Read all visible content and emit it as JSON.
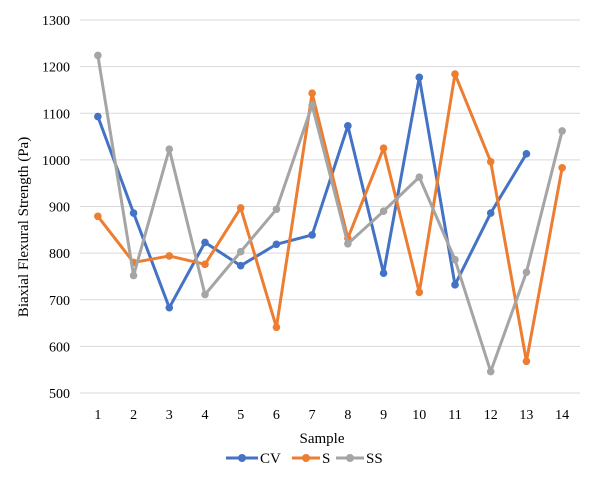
{
  "chart_data": {
    "type": "line",
    "title": "",
    "xlabel": "Sample",
    "ylabel": "Biaxial Flexural Strength (Pa)",
    "x": [
      1,
      2,
      3,
      4,
      5,
      6,
      7,
      8,
      9,
      10,
      11,
      12,
      13,
      14
    ],
    "ylim": [
      500,
      1300
    ],
    "yticks": [
      500,
      600,
      700,
      800,
      900,
      1000,
      1100,
      1200,
      1300
    ],
    "grid": true,
    "legend_position": "bottom",
    "series": [
      {
        "name": "CV",
        "color": "#4472c4",
        "values": [
          1093,
          886,
          683,
          823,
          773,
          819,
          839,
          1073,
          757,
          1177,
          732,
          886,
          1013,
          null
        ]
      },
      {
        "name": "S",
        "color": "#ed7d31",
        "values": [
          879,
          780,
          794,
          776,
          897,
          641,
          1143,
          832,
          1025,
          716,
          1184,
          996,
          568,
          983
        ]
      },
      {
        "name": "SS",
        "color": "#a5a5a5",
        "values": [
          1224,
          752,
          1023,
          711,
          803,
          894,
          1117,
          820,
          890,
          963,
          786,
          546,
          759,
          1062
        ]
      }
    ]
  }
}
